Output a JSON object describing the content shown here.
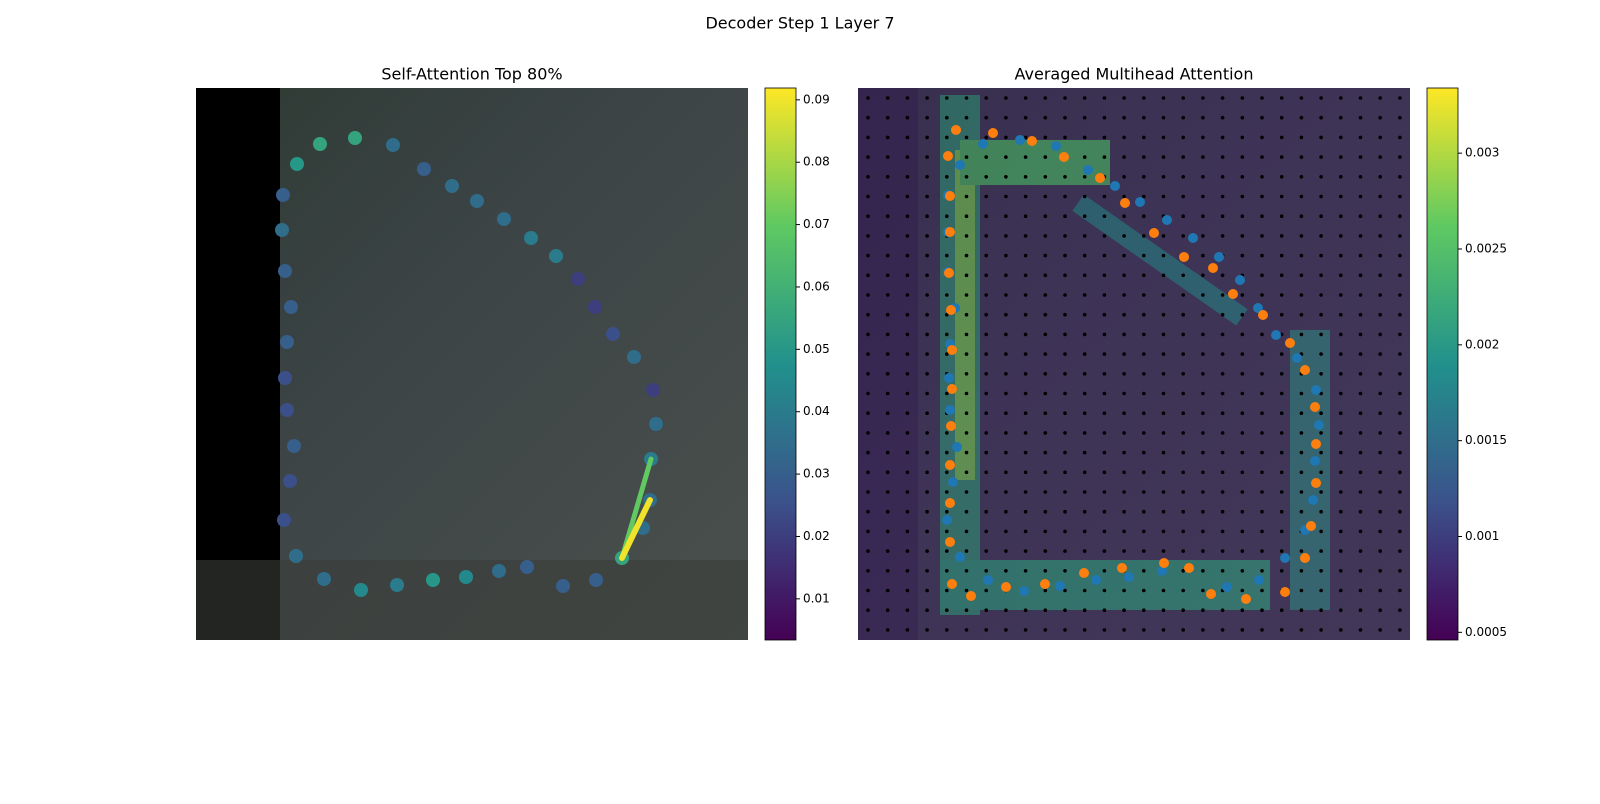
{
  "chart_data": [
    {
      "type": "attention-points",
      "suptitle": "Decoder Step 1 Layer 7",
      "title": "Self-Attention Top 80%",
      "xlim": [
        0,
        552
      ],
      "ylim": [
        552,
        0
      ],
      "clim": [
        0.0034,
        0.0919
      ],
      "cticks": [
        0.01,
        0.02,
        0.03,
        0.04,
        0.05,
        0.06,
        0.07,
        0.08,
        0.09
      ],
      "x": [
        124,
        159,
        197,
        101,
        228,
        256,
        281,
        308,
        335,
        360,
        382,
        399,
        417,
        438,
        457,
        460,
        455,
        454,
        447,
        426,
        400,
        367,
        331,
        303,
        270,
        237,
        201,
        165,
        128,
        100,
        88,
        94,
        98,
        91,
        89,
        91,
        95,
        89,
        86,
        87
      ],
      "y": [
        56,
        50,
        57,
        76,
        81,
        98,
        113,
        131,
        150,
        168,
        191,
        219,
        246,
        269,
        302,
        336,
        371,
        412,
        440,
        470,
        492,
        498,
        479,
        483,
        489,
        492,
        497,
        502,
        491,
        468,
        432,
        393,
        358,
        322,
        290,
        254,
        219,
        183,
        142,
        107
      ],
      "values": [
        0.055,
        0.055,
        0.035,
        0.05,
        0.03,
        0.035,
        0.035,
        0.035,
        0.04,
        0.04,
        0.02,
        0.02,
        0.025,
        0.035,
        0.02,
        0.035,
        0.04,
        0.035,
        0.035,
        0.055,
        0.03,
        0.03,
        0.03,
        0.035,
        0.045,
        0.05,
        0.04,
        0.045,
        0.035,
        0.035,
        0.025,
        0.025,
        0.03,
        0.025,
        0.025,
        0.03,
        0.03,
        0.03,
        0.035,
        0.03
      ],
      "links": [
        {
          "from": 19,
          "to": 16,
          "value": 0.07
        },
        {
          "from": 19,
          "to": 17,
          "value": 0.09
        }
      ]
    },
    {
      "type": "heatmap-points",
      "title": "Averaged Multihead Attention",
      "xlim": [
        0,
        552
      ],
      "ylim": [
        552,
        0
      ],
      "clim": [
        0.00046,
        0.00334
      ],
      "cticks": [
        0.0005,
        0.001,
        0.0015,
        0.002,
        0.0025,
        0.003
      ],
      "series": [
        {
          "color": "#1f77b4",
          "x": [
            102,
            125,
            162,
            198,
            230,
            257,
            282,
            309,
            335,
            361,
            382,
            400,
            418,
            439,
            458,
            461,
            457,
            455,
            447,
            427,
            401,
            369,
            304,
            271,
            238,
            202,
            166,
            130,
            102,
            89,
            95,
            99,
            92,
            91,
            92,
            97,
            90,
            90,
            90,
            98
          ],
          "y": [
            77,
            56,
            52,
            58,
            82,
            98,
            114,
            132,
            150,
            169,
            192,
            220,
            247,
            270,
            302,
            337,
            373,
            412,
            442,
            470,
            492,
            499,
            483,
            489,
            492,
            498,
            503,
            492,
            469,
            432,
            394,
            359,
            322,
            290,
            256,
            220,
            184,
            144,
            107,
            42
          ]
        },
        {
          "color": "#ff7f0e",
          "x": [
            98,
            135,
            174,
            206,
            242,
            267,
            296,
            326,
            355,
            375,
            405,
            432,
            447,
            457,
            458,
            458,
            453,
            447,
            427,
            388,
            353,
            331,
            306,
            264,
            226,
            187,
            148,
            113,
            94,
            92,
            92,
            92,
            93,
            94,
            94,
            93,
            91,
            92,
            92,
            90
          ],
          "y": [
            42,
            45,
            53,
            69,
            90,
            115,
            145,
            169,
            180,
            206,
            227,
            255,
            282,
            319,
            356,
            395,
            438,
            470,
            504,
            511,
            506,
            480,
            475,
            480,
            485,
            496,
            499,
            508,
            496,
            454,
            415,
            377,
            338,
            301,
            262,
            222,
            185,
            144,
            108,
            68
          ]
        }
      ]
    }
  ]
}
